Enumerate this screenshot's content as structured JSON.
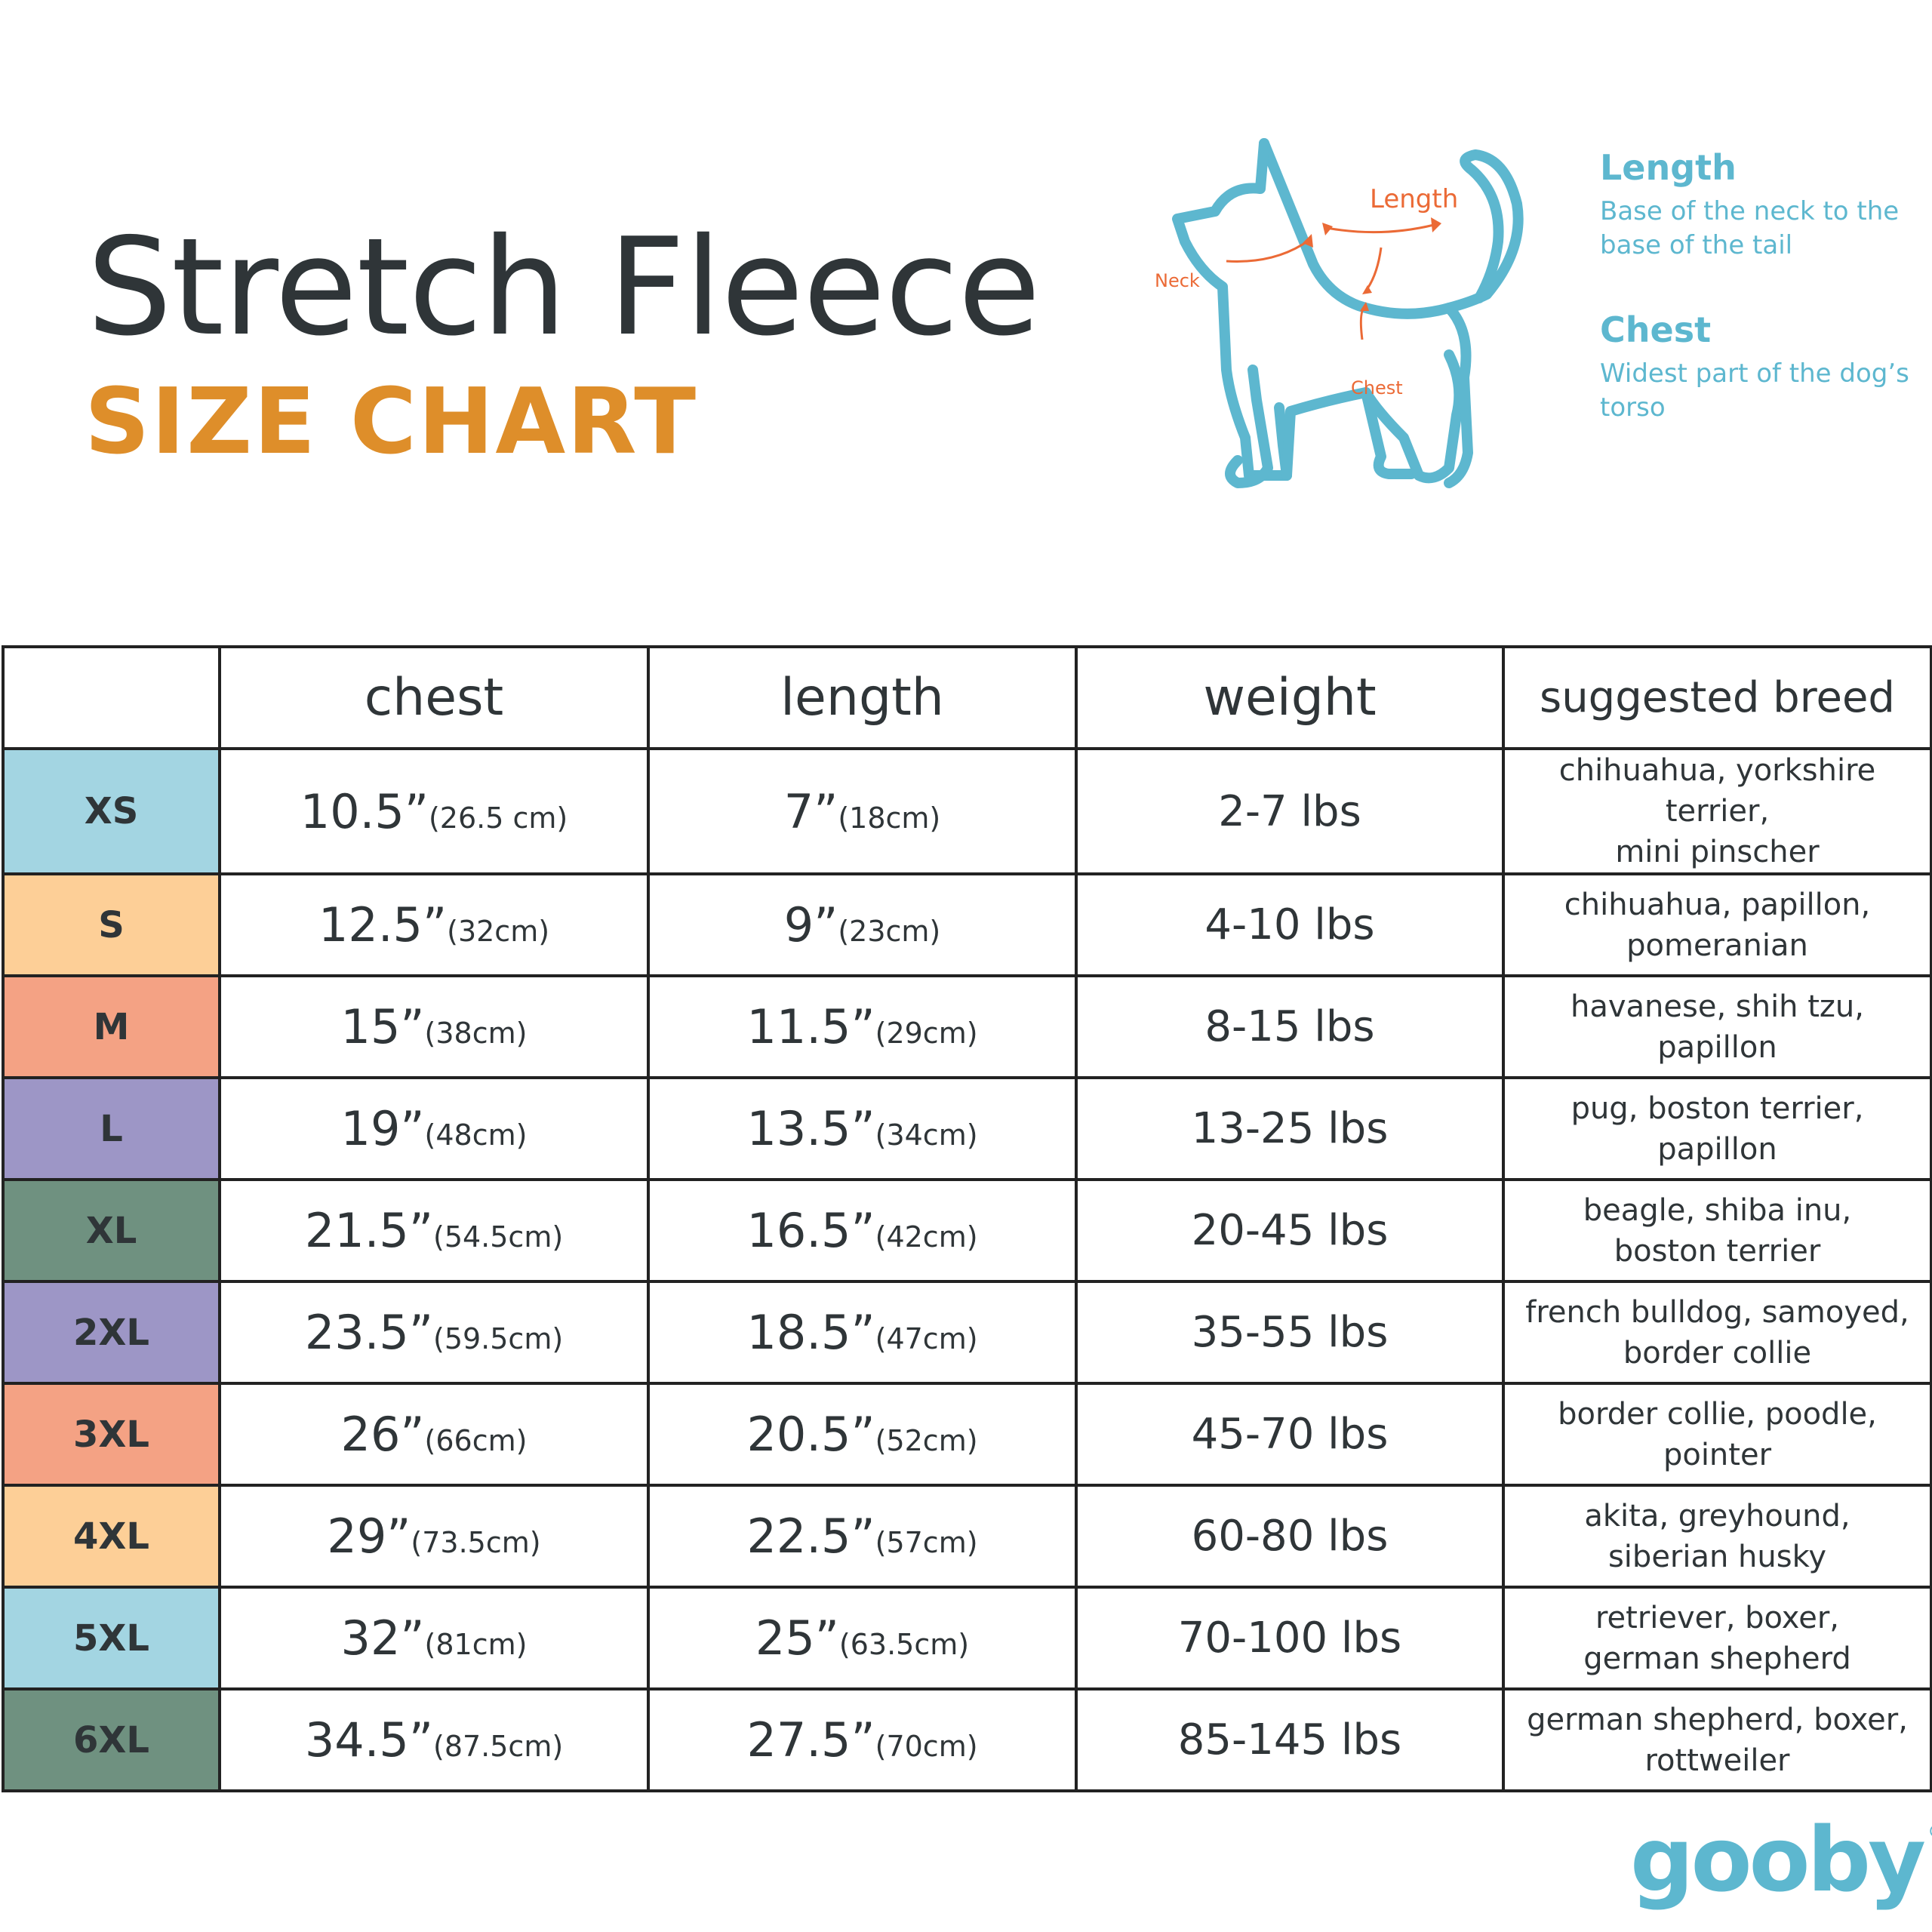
{
  "header": {
    "title": "Stretch Fleece",
    "subtitle": "SIZE CHART"
  },
  "diagram": {
    "labels": {
      "neck": "Neck",
      "length": "Length",
      "chest": "Chest"
    }
  },
  "legend": {
    "length_title": "Length",
    "length_desc": "Base of the neck to the base of the tail",
    "chest_title": "Chest",
    "chest_desc": "Widest part of the dog’s torso"
  },
  "table": {
    "headers": [
      "",
      "chest",
      "length",
      "weight",
      "suggested breed"
    ],
    "rows": [
      {
        "size": "XS",
        "color": "#a3d5e2",
        "chest_in": "10.5”",
        "chest_cm": "(26.5 cm)",
        "length_in": "7”",
        "length_cm": "(18cm)",
        "weight": "2-7 lbs",
        "breed_1": "chihuahua, yorkshire terrier,",
        "breed_2": "mini pinscher"
      },
      {
        "size": "S",
        "color": "#fdcf97",
        "chest_in": "12.5”",
        "chest_cm": "(32cm)",
        "length_in": "9”",
        "length_cm": "(23cm)",
        "weight": "4-10 lbs",
        "breed_1": "chihuahua, papillon,",
        "breed_2": "pomeranian"
      },
      {
        "size": "M",
        "color": "#f4a284",
        "chest_in": "15”",
        "chest_cm": "(38cm)",
        "length_in": "11.5”",
        "length_cm": "(29cm)",
        "weight": "8-15 lbs",
        "breed_1": "havanese, shih tzu,",
        "breed_2": "papillon"
      },
      {
        "size": "L",
        "color": "#9d96c6",
        "chest_in": "19”",
        "chest_cm": "(48cm)",
        "length_in": "13.5”",
        "length_cm": "(34cm)",
        "weight": "13-25 lbs",
        "breed_1": "pug, boston terrier,",
        "breed_2": "papillon"
      },
      {
        "size": "XL",
        "color": "#6f9180",
        "chest_in": "21.5”",
        "chest_cm": "(54.5cm)",
        "length_in": "16.5”",
        "length_cm": "(42cm)",
        "weight": "20-45 lbs",
        "breed_1": "beagle, shiba inu,",
        "breed_2": "boston terrier"
      },
      {
        "size": "2XL",
        "color": "#9d96c6",
        "chest_in": "23.5”",
        "chest_cm": "(59.5cm)",
        "length_in": "18.5”",
        "length_cm": "(47cm)",
        "weight": "35-55 lbs",
        "breed_1": "french bulldog, samoyed,",
        "breed_2": "border collie"
      },
      {
        "size": "3XL",
        "color": "#f4a284",
        "chest_in": "26”",
        "chest_cm": "(66cm)",
        "length_in": "20.5”",
        "length_cm": "(52cm)",
        "weight": "45-70 lbs",
        "breed_1": "border collie, poodle,",
        "breed_2": "pointer"
      },
      {
        "size": "4XL",
        "color": "#fdcf97",
        "chest_in": "29”",
        "chest_cm": "(73.5cm)",
        "length_in": "22.5”",
        "length_cm": "(57cm)",
        "weight": "60-80 lbs",
        "breed_1": "akita, greyhound,",
        "breed_2": "siberian husky"
      },
      {
        "size": "5XL",
        "color": "#a3d5e2",
        "chest_in": "32”",
        "chest_cm": "(81cm)",
        "length_in": "25”",
        "length_cm": "(63.5cm)",
        "weight": "70-100 lbs",
        "breed_1": "retriever, boxer,",
        "breed_2": "german shepherd"
      },
      {
        "size": "6XL",
        "color": "#6f9180",
        "chest_in": "34.5”",
        "chest_cm": "(87.5cm)",
        "length_in": "27.5”",
        "length_cm": "(70cm)",
        "weight": "85-145 lbs",
        "breed_1": "german shepherd, boxer,",
        "breed_2": "rottweiler"
      }
    ]
  },
  "brand": {
    "logo": "gooby",
    "mark": "®"
  },
  "colors": {
    "title": "#2f3538",
    "accent_orange": "#de8e2a",
    "teal": "#5db7cf",
    "annotation": "#eb6a36",
    "border": "#222222"
  }
}
